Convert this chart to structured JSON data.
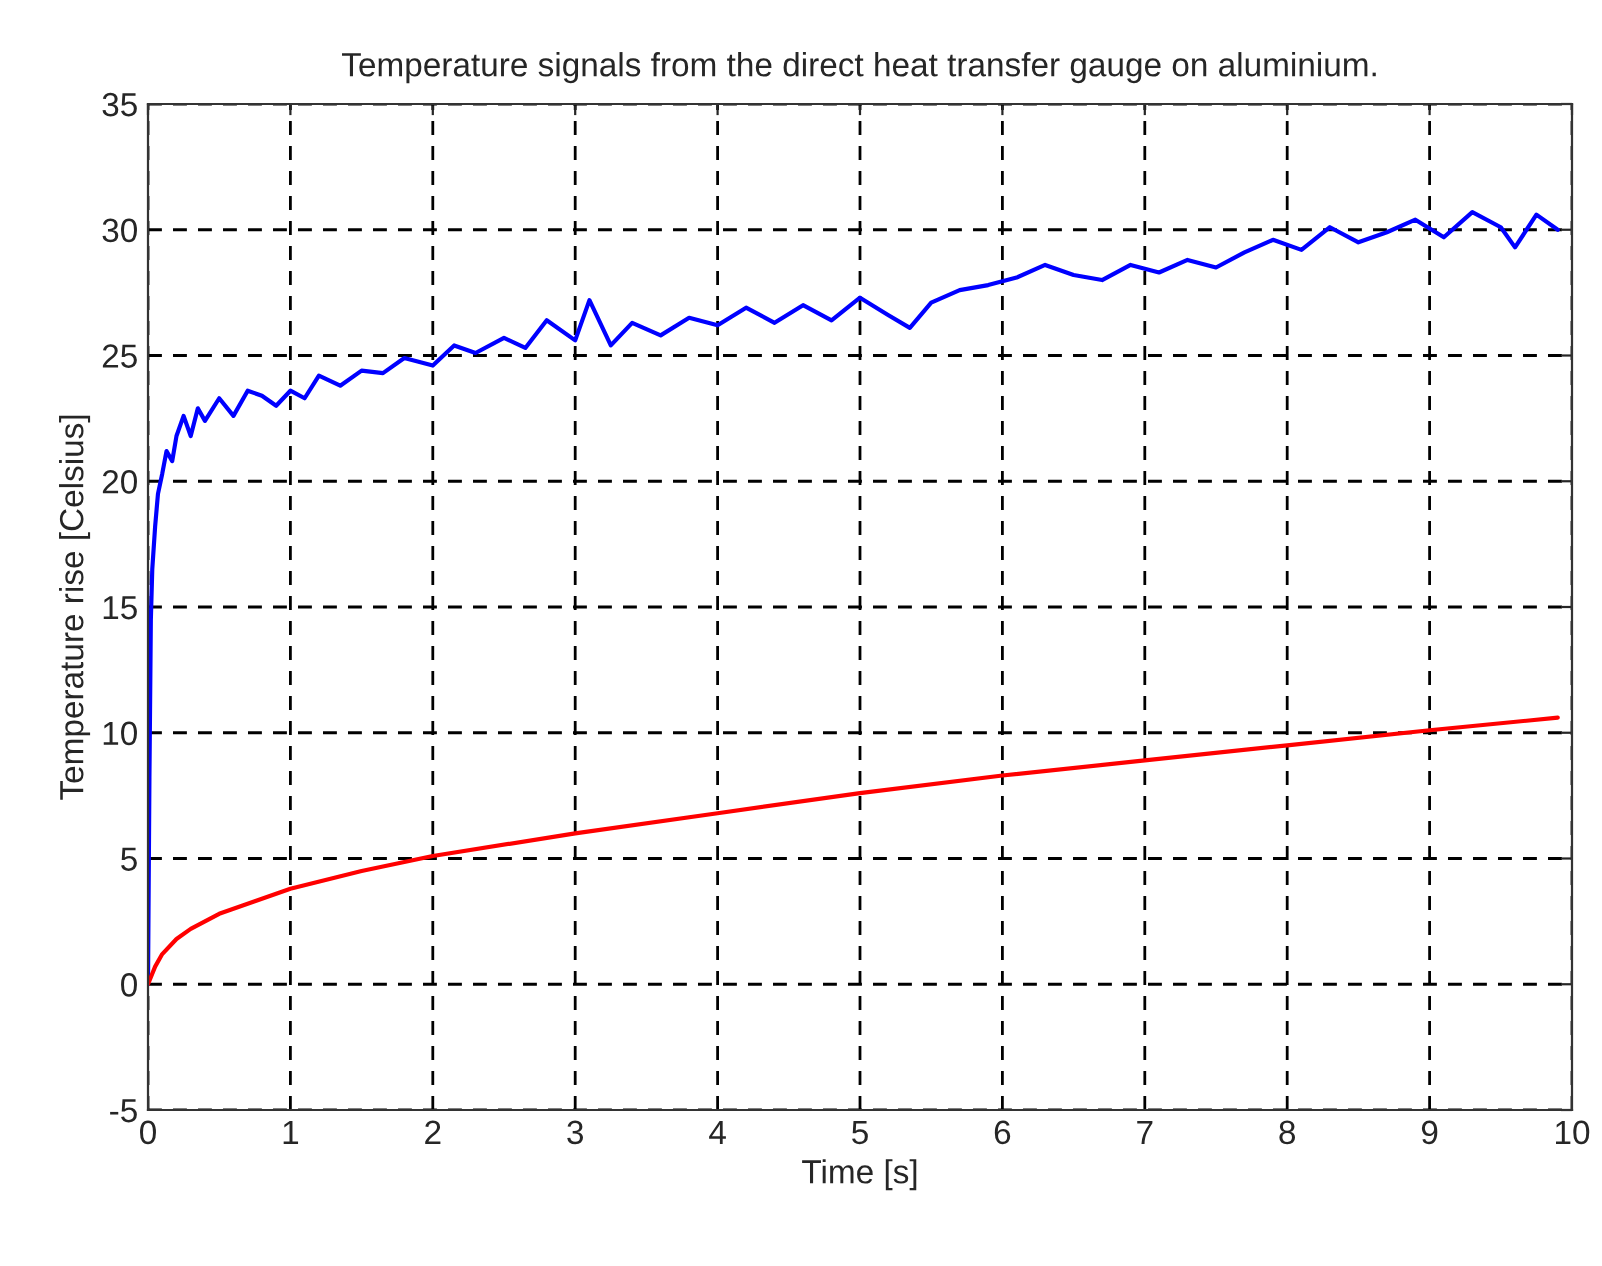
{
  "chart_data": {
    "type": "line",
    "title": "Temperature signals from the direct heat transfer gauge on aluminium.",
    "xlabel": "Time [s]",
    "ylabel": "Temperature rise [Celsius]",
    "xlim": [
      0,
      10
    ],
    "ylim": [
      -5,
      35
    ],
    "xticks": [
      0,
      1,
      2,
      3,
      4,
      5,
      6,
      7,
      8,
      9,
      10
    ],
    "yticks": [
      -5,
      0,
      5,
      10,
      15,
      20,
      25,
      30,
      35
    ],
    "grid": true,
    "legend": false,
    "line_style": "solid",
    "marker": "none",
    "series": [
      {
        "color": "#0000ff",
        "x": [
          0,
          0.01,
          0.02,
          0.03,
          0.05,
          0.07,
          0.1,
          0.13,
          0.17,
          0.2,
          0.25,
          0.3,
          0.35,
          0.4,
          0.5,
          0.6,
          0.7,
          0.8,
          0.9,
          1.0,
          1.1,
          1.2,
          1.35,
          1.5,
          1.65,
          1.8,
          2.0,
          2.15,
          2.3,
          2.5,
          2.65,
          2.8,
          3.0,
          3.1,
          3.25,
          3.4,
          3.6,
          3.8,
          4.0,
          4.2,
          4.4,
          4.6,
          4.8,
          5.0,
          5.2,
          5.35,
          5.5,
          5.7,
          5.9,
          6.1,
          6.3,
          6.5,
          6.7,
          6.9,
          7.1,
          7.3,
          7.5,
          7.7,
          7.9,
          8.1,
          8.3,
          8.5,
          8.7,
          8.9,
          9.1,
          9.3,
          9.5,
          9.6,
          9.75,
          9.9
        ],
        "values": [
          0,
          8.2,
          14.5,
          16.5,
          18.2,
          19.5,
          20.3,
          21.2,
          20.8,
          21.8,
          22.6,
          21.8,
          22.9,
          22.4,
          23.3,
          22.6,
          23.6,
          23.4,
          23.0,
          23.6,
          23.3,
          24.2,
          23.8,
          24.4,
          24.3,
          24.9,
          24.6,
          25.4,
          25.1,
          25.7,
          25.3,
          26.4,
          25.6,
          27.2,
          25.4,
          26.3,
          25.8,
          26.5,
          26.2,
          26.9,
          26.3,
          27.0,
          26.4,
          27.3,
          26.6,
          26.1,
          27.1,
          27.6,
          27.8,
          28.1,
          28.6,
          28.2,
          28.0,
          28.6,
          28.3,
          28.8,
          28.5,
          29.1,
          29.6,
          29.2,
          30.1,
          29.5,
          29.9,
          30.4,
          29.7,
          30.7,
          30.1,
          29.3,
          30.6,
          30.0
        ]
      },
      {
        "color": "#ff0000",
        "x": [
          0,
          0.05,
          0.1,
          0.2,
          0.3,
          0.5,
          0.75,
          1,
          1.5,
          2,
          3,
          4,
          5,
          6,
          7,
          8,
          9,
          9.9
        ],
        "values": [
          0,
          0.7,
          1.2,
          1.8,
          2.2,
          2.8,
          3.3,
          3.8,
          4.5,
          5.1,
          6.0,
          6.8,
          7.6,
          8.3,
          8.9,
          9.5,
          10.1,
          10.6
        ]
      }
    ]
  }
}
